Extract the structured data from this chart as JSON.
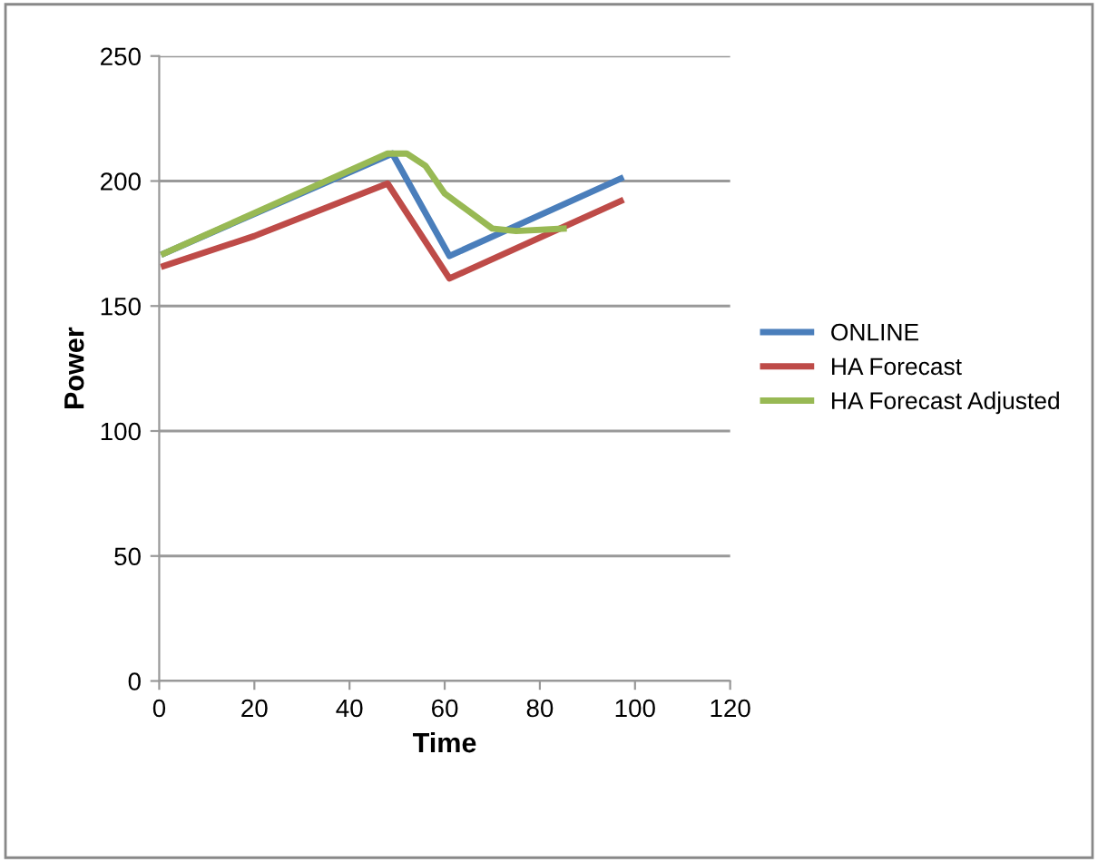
{
  "chart_data": {
    "type": "line",
    "xlabel": "Time",
    "ylabel": "Power",
    "xlim": [
      0,
      120
    ],
    "xticks": [
      0,
      20,
      40,
      60,
      80,
      100,
      120
    ],
    "ylim": [
      0,
      250
    ],
    "yticks": [
      0,
      50,
      100,
      150,
      200,
      250
    ],
    "grid": "y",
    "legend": "right",
    "marker": "none",
    "line_style": "solid",
    "series": [
      {
        "name": "ONLINE",
        "color": "#4a7ebb",
        "x": [
          1,
          49,
          61,
          97
        ],
        "values": [
          171,
          211,
          170,
          201
        ]
      },
      {
        "name": "HA Forecast",
        "color": "#be4b48",
        "x": [
          1,
          20,
          48,
          61,
          97
        ],
        "values": [
          166,
          178,
          199,
          161,
          192
        ]
      },
      {
        "name": "HA Forecast Adjusted",
        "color": "#98b954",
        "x": [
          1,
          48,
          52,
          56,
          60,
          65,
          70,
          75,
          85
        ],
        "values": [
          171,
          211,
          211,
          206,
          195,
          188,
          181,
          180,
          181
        ]
      }
    ]
  }
}
